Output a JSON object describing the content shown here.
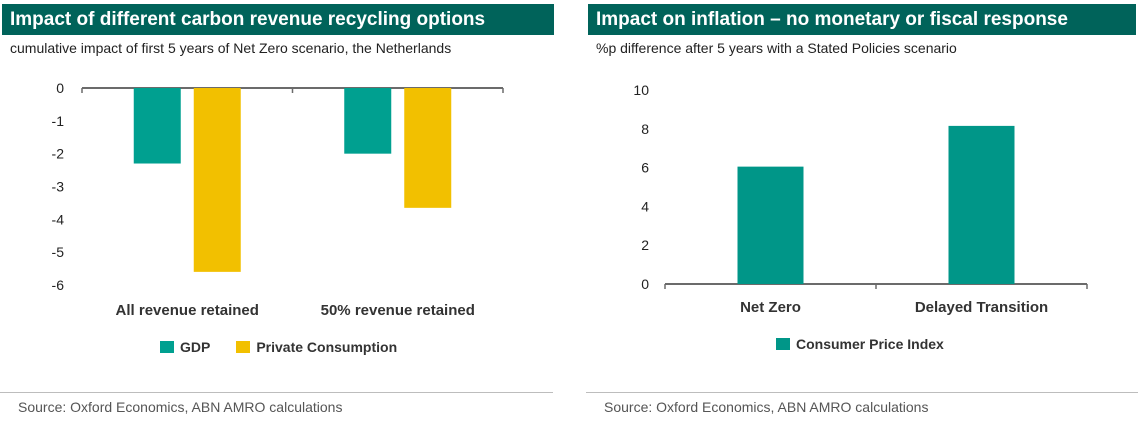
{
  "charts": [
    {
      "header": "Impact of different carbon revenue recycling options",
      "subheader": "cumulative impact of first 5 years of Net Zero scenario, the Netherlands",
      "source": "Source: Oxford Economics, ABN AMRO calculations",
      "legend": [
        {
          "label": "GDP",
          "color": "#00a090"
        },
        {
          "label": "Private Consumption",
          "color": "#f2c000"
        }
      ]
    },
    {
      "header": "Impact on inflation – no monetary or fiscal response",
      "subheader": "%p difference after 5 years with a Stated Policies scenario",
      "source": "Source: Oxford Economics, ABN AMRO calculations",
      "legend": [
        {
          "label": "Consumer Price Index",
          "color": "#009688"
        }
      ]
    }
  ],
  "chart_data": [
    {
      "type": "bar",
      "title": "Impact of different carbon revenue recycling options",
      "subtitle": "cumulative impact of first 5 years of Net Zero scenario, the Netherlands",
      "categories": [
        "All revenue retained",
        "50% revenue retained"
      ],
      "series": [
        {
          "name": "GDP",
          "values": [
            -2.3,
            -2.0
          ],
          "color": "#00a090"
        },
        {
          "name": "Private Consumption",
          "values": [
            -5.6,
            -3.65
          ],
          "color": "#f2c000"
        }
      ],
      "ylim": [
        -6,
        0
      ],
      "yticks": [
        0,
        -1,
        -2,
        -3,
        -4,
        -5,
        -6
      ],
      "xlabel": "",
      "ylabel": "",
      "grid": false,
      "legend_position": "bottom"
    },
    {
      "type": "bar",
      "title": "Impact on inflation – no monetary or fiscal response",
      "subtitle": "%p difference after 5 years with a Stated Policies scenario",
      "categories": [
        "Net Zero",
        "Delayed Transition"
      ],
      "series": [
        {
          "name": "Consumer Price Index",
          "values": [
            6.05,
            8.15
          ],
          "color": "#009688"
        }
      ],
      "ylim": [
        0,
        10
      ],
      "yticks": [
        0,
        2,
        4,
        6,
        8,
        10
      ],
      "xlabel": "",
      "ylabel": "",
      "grid": false,
      "legend_position": "bottom"
    }
  ]
}
